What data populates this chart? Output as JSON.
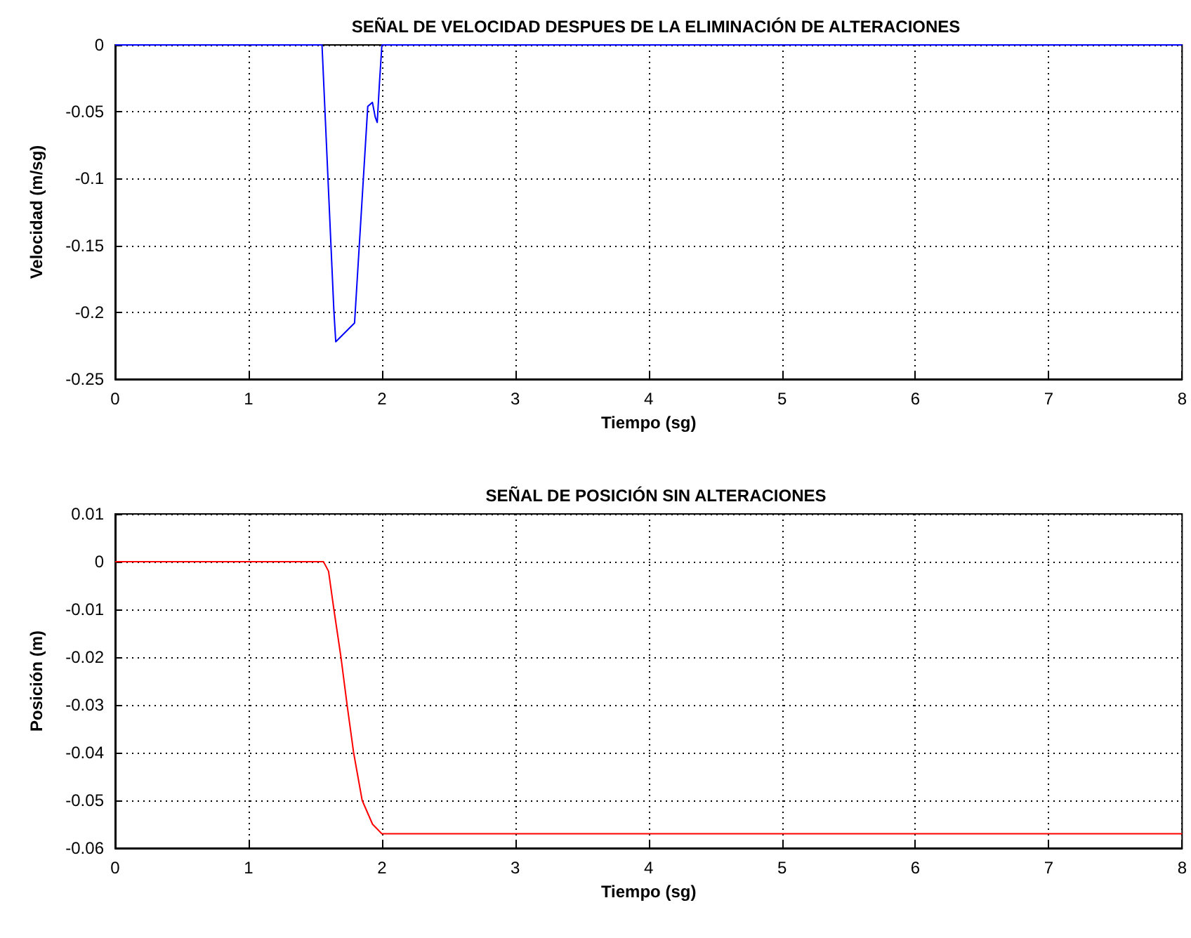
{
  "chart_data": [
    {
      "type": "line",
      "title": "SEÑAL DE VELOCIDAD DESPUES DE LA ELIMINACIÓN DE ALTERACIONES",
      "xlabel": "Tiempo (sg)",
      "ylabel": "Velocidad (m/sg)",
      "series": [
        {
          "color": "#0000ff",
          "x": [
            0,
            1.551,
            1.64,
            1.654,
            1.795,
            1.894,
            1.929,
            1.95,
            1.965,
            1.982,
            2,
            8
          ],
          "values": [
            0,
            0,
            -0.199,
            -0.222,
            -0.208,
            -0.046,
            -0.043,
            -0.054,
            -0.058,
            -0.028,
            0,
            0
          ]
        }
      ],
      "xlim": [
        0,
        8
      ],
      "xticks": [
        0,
        1,
        2,
        3,
        4,
        5,
        6,
        7,
        8
      ],
      "ylim": [
        -0.25,
        0
      ],
      "yticks": [
        -0.25,
        -0.2,
        -0.15,
        -0.1,
        -0.05,
        0
      ],
      "grid": true,
      "line_style": "solid",
      "marker": "none"
    },
    {
      "type": "line",
      "title": "SEÑAL DE POSICIÓN SIN ALTERACIONES",
      "xlabel": "Tiempo (sg)",
      "ylabel": "Posición (m)",
      "series": [
        {
          "color": "#ff0000",
          "x": [
            0,
            1.562,
            1.6,
            1.64,
            1.693,
            1.739,
            1.788,
            1.852,
            1.93,
            1.965,
            2,
            8
          ],
          "values": [
            0,
            0,
            -0.002,
            -0.01,
            -0.02,
            -0.03,
            -0.04,
            -0.05,
            -0.055,
            -0.056,
            -0.057,
            -0.057
          ]
        }
      ],
      "xlim": [
        0,
        8
      ],
      "xticks": [
        0,
        1,
        2,
        3,
        4,
        5,
        6,
        7,
        8
      ],
      "ylim": [
        -0.06,
        0.01
      ],
      "yticks": [
        -0.06,
        -0.05,
        -0.04,
        -0.03,
        -0.02,
        -0.01,
        0,
        0.01
      ],
      "grid": true,
      "line_style": "solid",
      "marker": "none"
    }
  ]
}
